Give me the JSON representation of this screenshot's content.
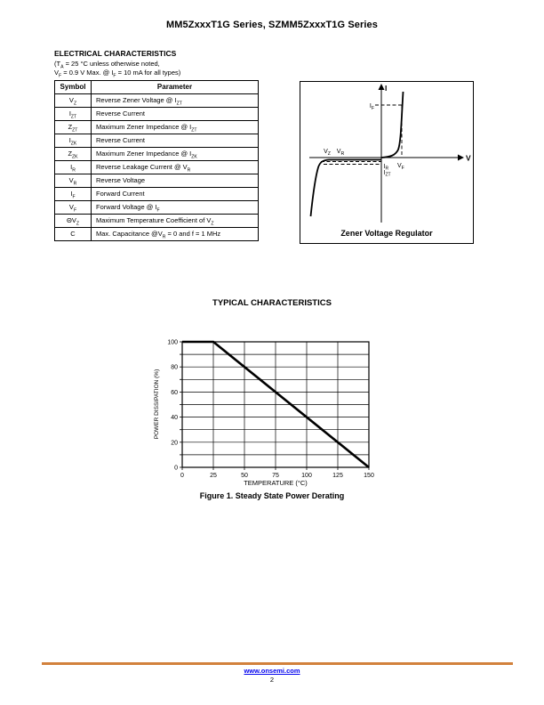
{
  "page": {
    "title": "MM5ZxxxT1G Series, SZMM5ZxxxT1G Series",
    "link_color": "#0000EE",
    "footer": {
      "url": "www.onsemi.com",
      "page_number": "2",
      "rule_color": "#D2813C"
    }
  },
  "electrical": {
    "heading": "ELECTRICAL CHARACTERISTICS",
    "conditions": [
      "(T_{A} = 25 °C unless otherwise noted,",
      "V_{F} = 0.9 V Max. @ I_{F} = 10 mA for all types)"
    ],
    "table": {
      "headers": [
        "Symbol",
        "Parameter"
      ],
      "rows": [
        [
          "V_{Z}",
          "Reverse Zener Voltage @ I_{ZT}"
        ],
        [
          "I_{ZT}",
          "Reverse Current"
        ],
        [
          "Z_{ZT}",
          "Maximum Zener Impedance @ I_{ZT}"
        ],
        [
          "I_{ZK}",
          "Reverse Current"
        ],
        [
          "Z_{ZK}",
          "Maximum Zener Impedance @ I_{ZK}"
        ],
        [
          "I_{R}",
          "Reverse Leakage Current @ V_{R}"
        ],
        [
          "V_{R}",
          "Reverse Voltage"
        ],
        [
          "I_{F}",
          "Forward Current"
        ],
        [
          "V_{F}",
          "Forward Voltage @ I_{F}"
        ],
        [
          "ΘV_{Z}",
          "Maximum Temperature Coefficient of V_{Z}"
        ],
        [
          "C",
          "Max. Capacitance @V_{R} = 0 and f = 1 MHz"
        ]
      ]
    }
  },
  "diagram": {
    "caption": "Zener Voltage Regulator",
    "labels": {
      "i_axis": "I",
      "v_axis": "V",
      "if": {
        "main": "I",
        "sub": "F"
      },
      "vf": {
        "main": "V",
        "sub": "F"
      },
      "vz": {
        "main": "V",
        "sub": "Z"
      },
      "vr": {
        "main": "V",
        "sub": "R"
      },
      "ir": {
        "main": "I",
        "sub": "R"
      },
      "izt": {
        "main": "I",
        "sub": "ZT"
      }
    }
  },
  "typical": {
    "heading": "TYPICAL CHARACTERISTICS",
    "figure_caption": "Figure 1. Steady State Power Derating"
  },
  "chart_data": {
    "type": "line",
    "title": "Figure 1. Steady State Power Derating",
    "xlabel": "TEMPERATURE (°C)",
    "ylabel": "POWER DISSIPATION (%)",
    "xlim": [
      0,
      150
    ],
    "ylim": [
      0,
      100
    ],
    "x_ticks": [
      0,
      25,
      50,
      75,
      100,
      125,
      150
    ],
    "y_ticks": [
      0,
      20,
      40,
      60,
      80,
      100
    ],
    "x_grid_step": 25,
    "y_grid_step": 10,
    "grid": true,
    "legend": "none",
    "series": [
      {
        "name": "Steady State Power Derating",
        "points": [
          [
            0,
            100
          ],
          [
            25,
            100
          ],
          [
            150,
            0
          ]
        ]
      }
    ]
  }
}
